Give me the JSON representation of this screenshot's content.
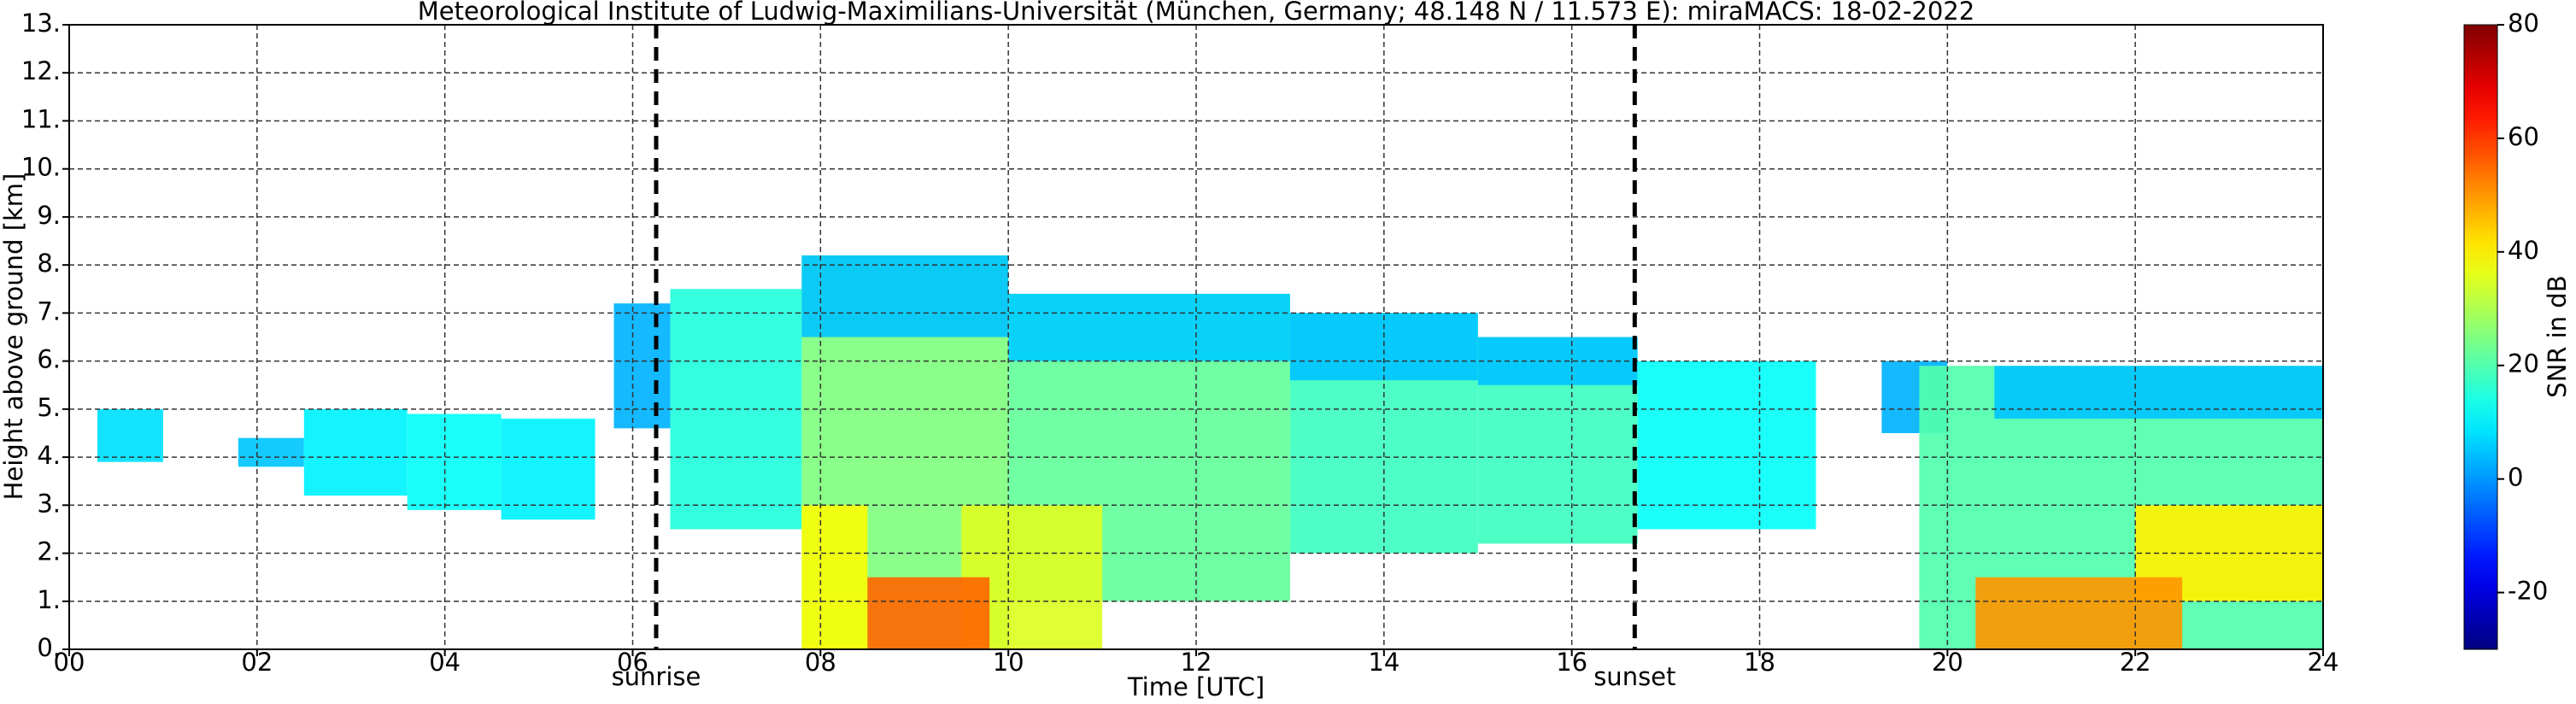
{
  "chart_data": {
    "type": "heatmap",
    "title": "Meteorological Institute of Ludwig-Maximilians-Universität (München, Germany; 48.148 N / 11.573 E):    miraMACS: 18-02-2022",
    "x_label": "Time [UTC]",
    "y_label": "Height above ground [km]",
    "colorbar_label": "SNR in dB",
    "xlim": [
      0,
      24
    ],
    "xticks": [
      {
        "value": 0,
        "label": "00"
      },
      {
        "value": 2,
        "label": "02"
      },
      {
        "value": 4,
        "label": "04"
      },
      {
        "value": 6,
        "label": "06"
      },
      {
        "value": 8,
        "label": "08"
      },
      {
        "value": 10,
        "label": "10"
      },
      {
        "value": 12,
        "label": "12"
      },
      {
        "value": 14,
        "label": "14"
      },
      {
        "value": 16,
        "label": "16"
      },
      {
        "value": 18,
        "label": "18"
      },
      {
        "value": 20,
        "label": "20"
      },
      {
        "value": 22,
        "label": "22"
      },
      {
        "value": 24,
        "label": "24"
      }
    ],
    "ylim": [
      0,
      13
    ],
    "yticks": [
      {
        "value": 0,
        "label": "0."
      },
      {
        "value": 1,
        "label": "1."
      },
      {
        "value": 2,
        "label": "2."
      },
      {
        "value": 3,
        "label": "3."
      },
      {
        "value": 4,
        "label": "4."
      },
      {
        "value": 5,
        "label": "5."
      },
      {
        "value": 6,
        "label": "6."
      },
      {
        "value": 7,
        "label": "7."
      },
      {
        "value": 8,
        "label": "8."
      },
      {
        "value": 9,
        "label": "9."
      },
      {
        "value": 10,
        "label": "10."
      },
      {
        "value": 11,
        "label": "11."
      },
      {
        "value": 12,
        "label": "12."
      },
      {
        "value": 13,
        "label": "13."
      }
    ],
    "clim": [
      -30,
      80
    ],
    "cticks": [
      -20,
      0,
      20,
      40,
      60,
      80
    ],
    "colormap": "jet",
    "grid": true,
    "events": [
      {
        "label": "sunrise",
        "time": 6.25
      },
      {
        "label": "sunset",
        "time": 16.67
      }
    ],
    "patches": [
      {
        "t": [
          0.3,
          1.0
        ],
        "h": [
          3.9,
          5.0
        ],
        "snr": 8
      },
      {
        "t": [
          1.8,
          2.5
        ],
        "h": [
          3.8,
          4.4
        ],
        "snr": 5
      },
      {
        "t": [
          2.5,
          3.6
        ],
        "h": [
          3.2,
          5.0
        ],
        "snr": 10
      },
      {
        "t": [
          3.6,
          4.6
        ],
        "h": [
          2.9,
          4.9
        ],
        "snr": 12
      },
      {
        "t": [
          4.6,
          5.6
        ],
        "h": [
          2.7,
          4.8
        ],
        "snr": 10
      },
      {
        "t": [
          5.8,
          6.4
        ],
        "h": [
          4.6,
          7.2
        ],
        "snr": 3
      },
      {
        "t": [
          6.4,
          7.8
        ],
        "h": [
          2.5,
          7.5
        ],
        "snr": 15
      },
      {
        "t": [
          7.8,
          10.0
        ],
        "h": [
          0.0,
          8.2
        ],
        "snr": 25
      },
      {
        "t": [
          7.8,
          10.0
        ],
        "h": [
          6.5,
          8.2
        ],
        "snr": 5
      },
      {
        "t": [
          10.0,
          13.0
        ],
        "h": [
          1.0,
          7.4
        ],
        "snr": 22
      },
      {
        "t": [
          10.0,
          13.0
        ],
        "h": [
          6.0,
          7.4
        ],
        "snr": 6
      },
      {
        "t": [
          13.0,
          15.0
        ],
        "h": [
          2.0,
          7.0
        ],
        "snr": 18
      },
      {
        "t": [
          13.0,
          15.0
        ],
        "h": [
          5.6,
          7.0
        ],
        "snr": 5
      },
      {
        "t": [
          15.0,
          16.7
        ],
        "h": [
          2.2,
          6.5
        ],
        "snr": 18
      },
      {
        "t": [
          15.0,
          16.7
        ],
        "h": [
          5.5,
          6.5
        ],
        "snr": 5
      },
      {
        "t": [
          16.7,
          18.6
        ],
        "h": [
          2.5,
          6.0
        ],
        "snr": 12
      },
      {
        "t": [
          19.3,
          20.0
        ],
        "h": [
          4.5,
          6.0
        ],
        "snr": 3
      },
      {
        "t": [
          19.7,
          24.0
        ],
        "h": [
          0.0,
          5.9
        ],
        "snr": 20
      },
      {
        "t": [
          20.5,
          24.0
        ],
        "h": [
          4.8,
          5.9
        ],
        "snr": 5
      },
      {
        "t": [
          7.8,
          8.5
        ],
        "h": [
          0.0,
          3.0
        ],
        "snr": 38
      },
      {
        "t": [
          9.5,
          11.0
        ],
        "h": [
          0.0,
          3.0
        ],
        "snr": 35
      },
      {
        "t": [
          8.5,
          9.8
        ],
        "h": [
          0.0,
          1.5
        ],
        "snr": 55
      },
      {
        "t": [
          22.0,
          24.0
        ],
        "h": [
          1.0,
          3.0
        ],
        "snr": 40
      },
      {
        "t": [
          20.3,
          22.5
        ],
        "h": [
          0.0,
          1.5
        ],
        "snr": 50
      }
    ]
  }
}
